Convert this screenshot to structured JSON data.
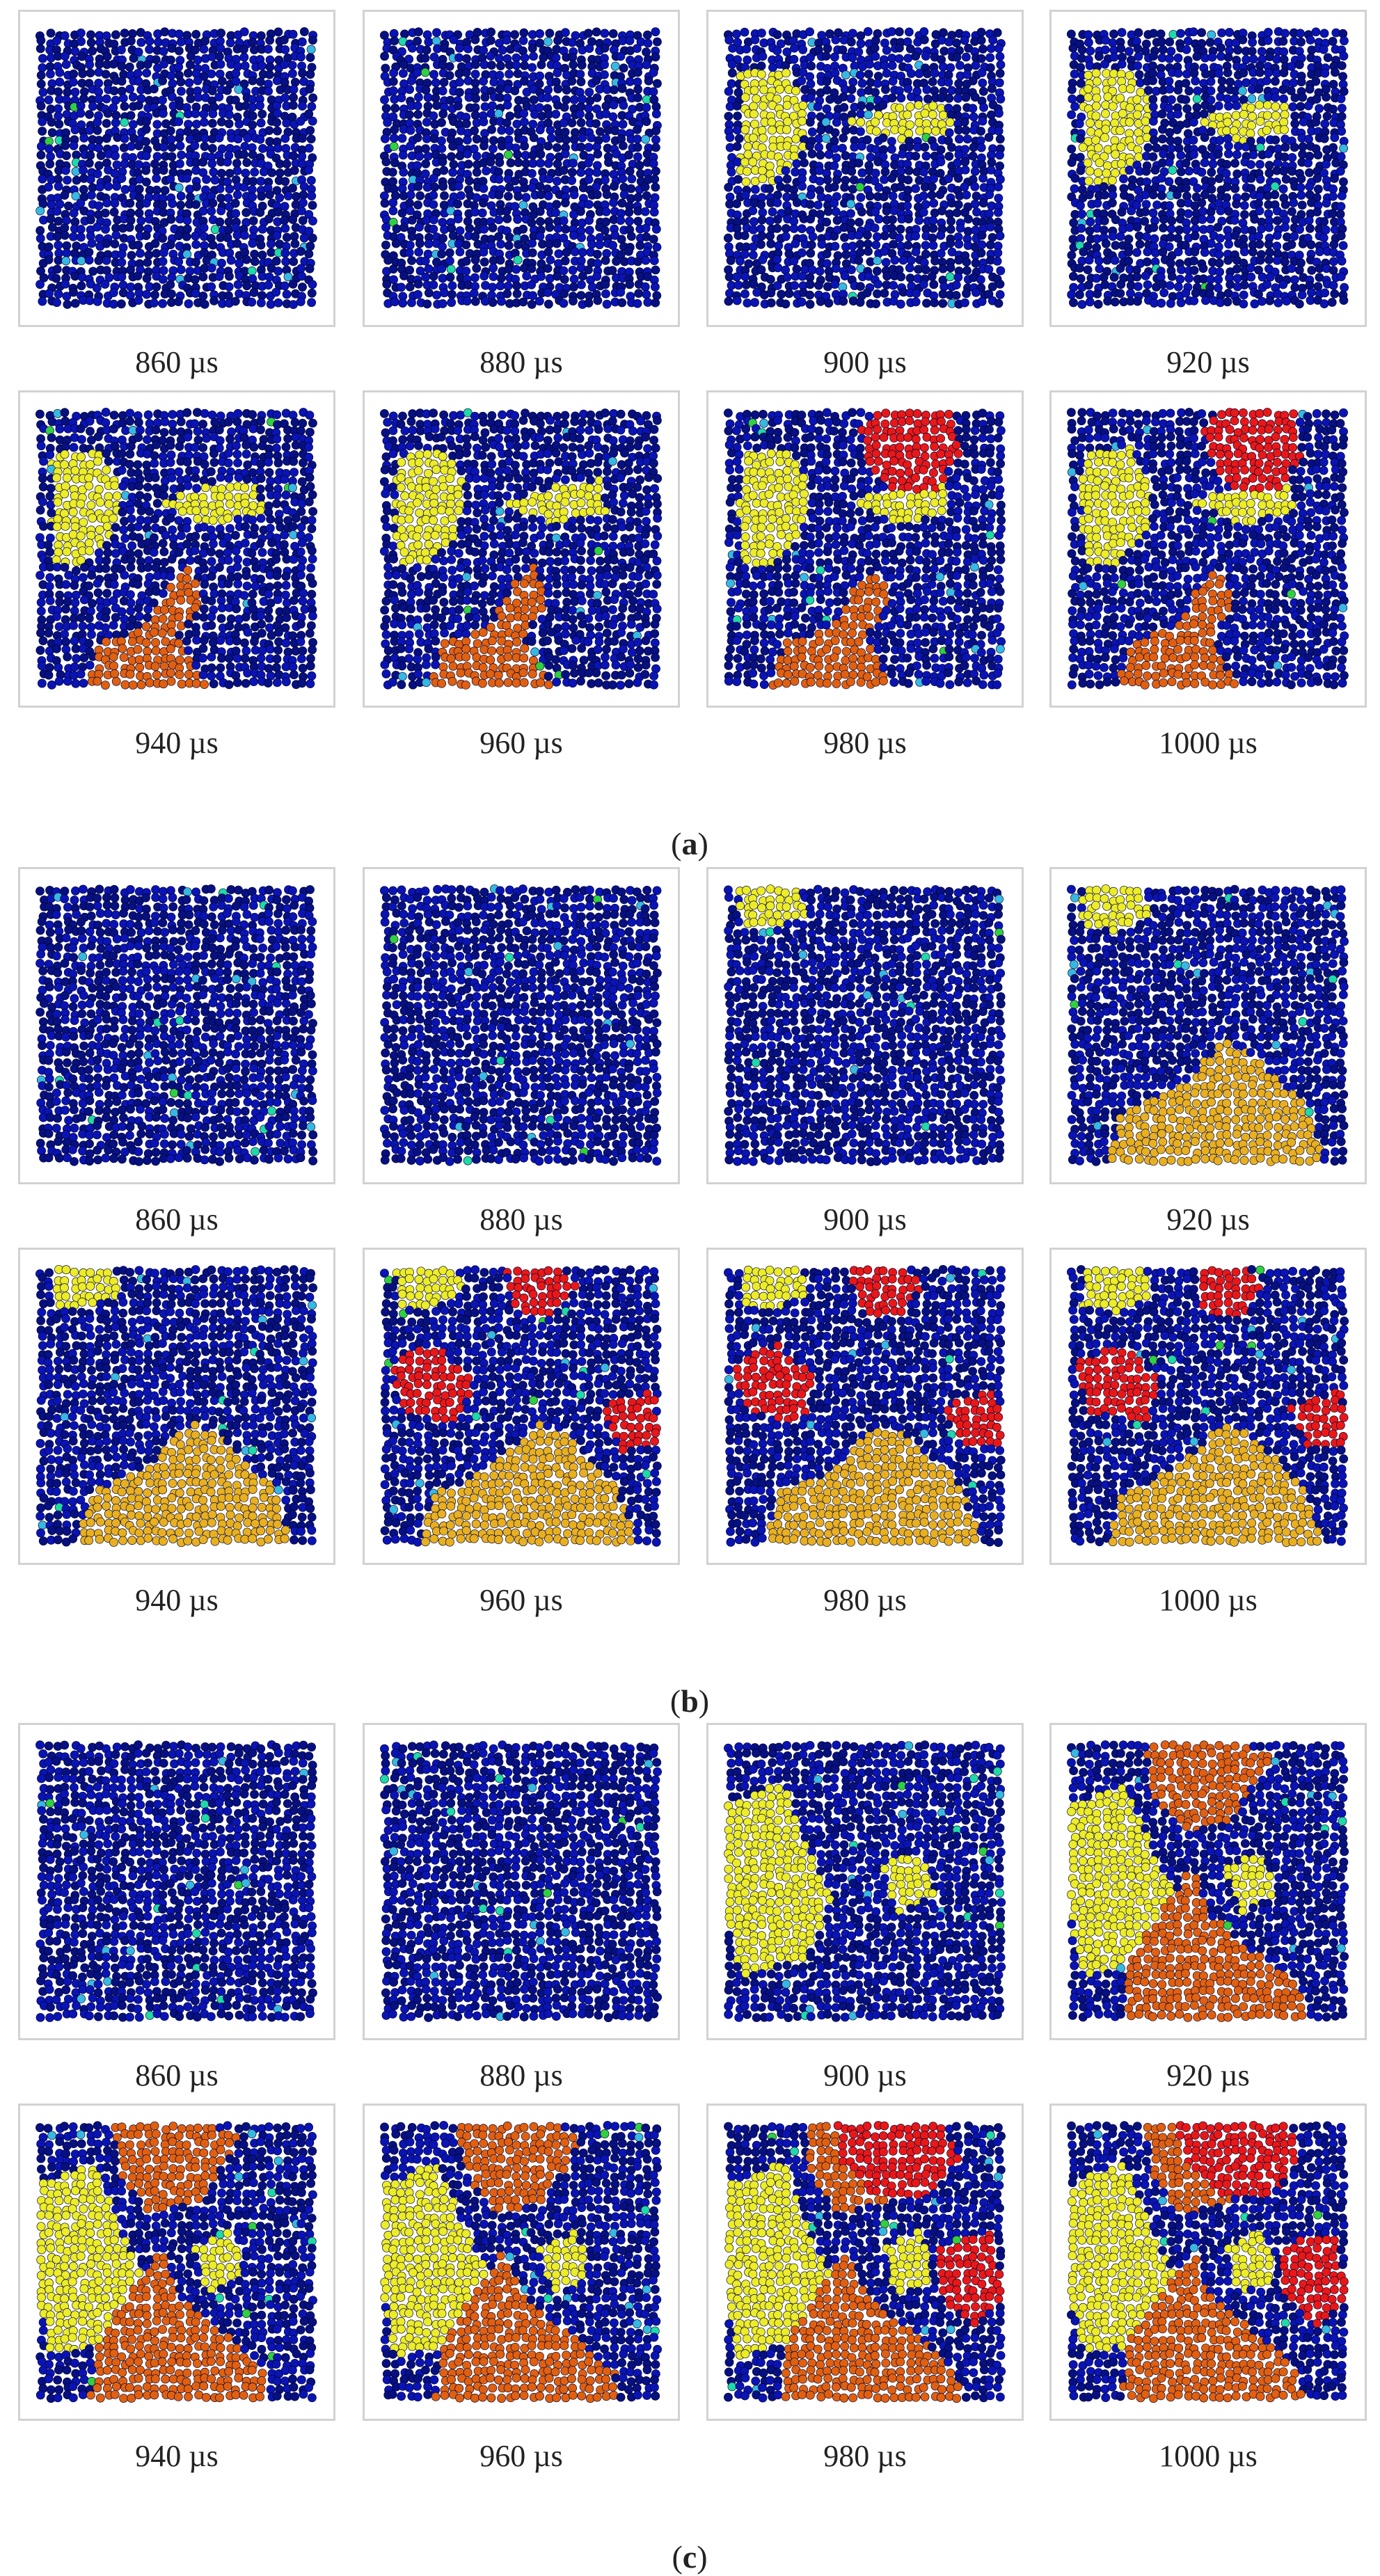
{
  "figure": {
    "colors": {
      "background_blue": "#0a14b4",
      "dark_blue": "#061080",
      "cyan": "#38b8e0",
      "teal": "#20d8a8",
      "green": "#30d040",
      "yellow": "#ecec28",
      "gold": "#e8b020",
      "orange": "#e06010",
      "red": "#e81818",
      "frame": "#d2d2d2"
    },
    "subfigures": [
      {
        "label": "a",
        "panels": [
          {
            "time": "860 µs",
            "regions": []
          },
          {
            "time": "880 µs",
            "regions": []
          },
          {
            "time": "900 µs",
            "regions": [
              "yellow"
            ]
          },
          {
            "time": "920 µs",
            "regions": [
              "yellow"
            ]
          },
          {
            "time": "940 µs",
            "regions": [
              "yellow",
              "orange"
            ]
          },
          {
            "time": "960 µs",
            "regions": [
              "yellow",
              "orange"
            ]
          },
          {
            "time": "980 µs",
            "regions": [
              "yellow",
              "orange",
              "red"
            ]
          },
          {
            "time": "1000 µs",
            "regions": [
              "yellow",
              "orange",
              "red"
            ]
          }
        ]
      },
      {
        "label": "b",
        "panels": [
          {
            "time": "860 µs",
            "regions": []
          },
          {
            "time": "880 µs",
            "regions": []
          },
          {
            "time": "900 µs",
            "regions": [
              "yellow"
            ]
          },
          {
            "time": "920 µs",
            "regions": [
              "yellow",
              "gold"
            ]
          },
          {
            "time": "940 µs",
            "regions": [
              "yellow",
              "gold"
            ]
          },
          {
            "time": "960 µs",
            "regions": [
              "yellow",
              "gold",
              "red"
            ]
          },
          {
            "time": "980 µs",
            "regions": [
              "yellow",
              "gold",
              "red"
            ]
          },
          {
            "time": "1000 µs",
            "regions": [
              "yellow",
              "gold",
              "red"
            ]
          }
        ]
      },
      {
        "label": "c",
        "panels": [
          {
            "time": "860 µs",
            "regions": []
          },
          {
            "time": "880 µs",
            "regions": []
          },
          {
            "time": "900 µs",
            "regions": [
              "yellow"
            ]
          },
          {
            "time": "920 µs",
            "regions": [
              "yellow",
              "orange"
            ]
          },
          {
            "time": "940 µs",
            "regions": [
              "yellow",
              "orange"
            ]
          },
          {
            "time": "960 µs",
            "regions": [
              "yellow",
              "orange"
            ]
          },
          {
            "time": "980 µs",
            "regions": [
              "yellow",
              "orange",
              "red"
            ]
          },
          {
            "time": "1000 µs",
            "regions": [
              "yellow",
              "orange",
              "red"
            ]
          }
        ]
      }
    ]
  }
}
